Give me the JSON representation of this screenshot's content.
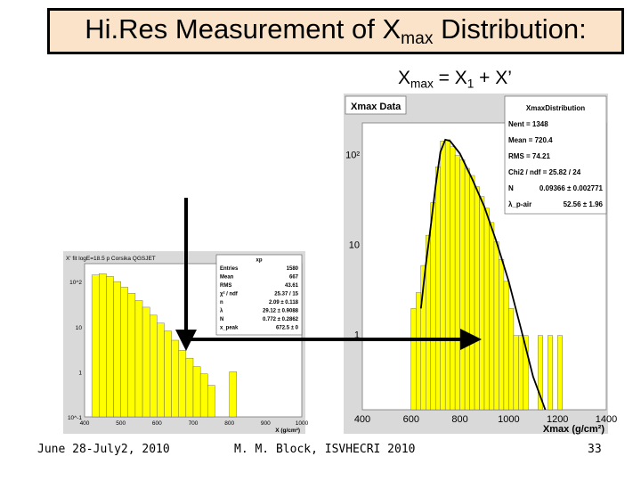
{
  "title": {
    "text_main": "Hi.Res Measurement of X",
    "text_sub": "max",
    "text_end": " Distribution:"
  },
  "equation": {
    "lhs": "X",
    "lhs_sub": "max",
    "mid": " = X",
    "mid_sub": "1",
    "rhs": " + X’"
  },
  "footer": {
    "date": "June 28-July2, 2010",
    "author": "M. M. Block, ISVHECRI 2010",
    "page": "33"
  },
  "colors": {
    "title_bg": "#fae3c8",
    "hist_fill": "#ffff00",
    "frame_bg": "#d9d9d9"
  },
  "chart_data": [
    {
      "type": "bar",
      "title": "X' fit logE=18.5 p Corsika QGSJET",
      "ylog": true,
      "xlabel": "X (g/cm²)",
      "ylabel": "",
      "x_ticks": [
        "400",
        "500",
        "600",
        "700",
        "800",
        "900",
        "1000"
      ],
      "y_ticks": [
        "10^-1",
        "1",
        "10",
        "10^2"
      ],
      "xlim": [
        400,
        1000
      ],
      "ylim": [
        0.1,
        250
      ],
      "bins": [
        {
          "x": 430,
          "y": 140
        },
        {
          "x": 450,
          "y": 150
        },
        {
          "x": 470,
          "y": 130
        },
        {
          "x": 490,
          "y": 100
        },
        {
          "x": 510,
          "y": 75
        },
        {
          "x": 530,
          "y": 55
        },
        {
          "x": 550,
          "y": 38
        },
        {
          "x": 570,
          "y": 27
        },
        {
          "x": 590,
          "y": 18
        },
        {
          "x": 610,
          "y": 12
        },
        {
          "x": 630,
          "y": 8
        },
        {
          "x": 650,
          "y": 5
        },
        {
          "x": 670,
          "y": 3
        },
        {
          "x": 690,
          "y": 2
        },
        {
          "x": 710,
          "y": 1.3
        },
        {
          "x": 730,
          "y": 0.9
        },
        {
          "x": 750,
          "y": 0.5
        },
        {
          "x": 810,
          "y": 1
        }
      ],
      "stats": {
        "header": "xp",
        "rows": [
          [
            "Entries",
            "1580"
          ],
          [
            "Mean",
            "667"
          ],
          [
            "RMS",
            "43.61"
          ],
          [
            "χ² / ndf",
            "25.37 / 15"
          ],
          [
            "n",
            "2.09 ± 0.118"
          ],
          [
            "λ",
            "29.12 ± 0.9088"
          ],
          [
            "N",
            "0.772 ± 0.2862"
          ],
          [
            "x_peak",
            "672.5 ± 0"
          ]
        ]
      }
    },
    {
      "type": "bar",
      "title": "Xmax Data",
      "ylog": true,
      "xlabel": "Xmax (g/cm²)",
      "ylabel": "",
      "x_ticks": [
        "400",
        "600",
        "800",
        "1000",
        "1200",
        "1400"
      ],
      "y_ticks": [
        "1",
        "10",
        "10²"
      ],
      "xlim": [
        400,
        1400
      ],
      "ylim": [
        0.15,
        230
      ],
      "bins": [
        {
          "x": 610,
          "y": 2
        },
        {
          "x": 630,
          "y": 3
        },
        {
          "x": 650,
          "y": 6
        },
        {
          "x": 670,
          "y": 13
        },
        {
          "x": 690,
          "y": 30
        },
        {
          "x": 710,
          "y": 75
        },
        {
          "x": 730,
          "y": 145
        },
        {
          "x": 750,
          "y": 150
        },
        {
          "x": 770,
          "y": 125
        },
        {
          "x": 790,
          "y": 100
        },
        {
          "x": 810,
          "y": 90
        },
        {
          "x": 830,
          "y": 72
        },
        {
          "x": 850,
          "y": 60
        },
        {
          "x": 870,
          "y": 45
        },
        {
          "x": 890,
          "y": 35
        },
        {
          "x": 910,
          "y": 26
        },
        {
          "x": 930,
          "y": 18
        },
        {
          "x": 950,
          "y": 11
        },
        {
          "x": 970,
          "y": 7
        },
        {
          "x": 990,
          "y": 4
        },
        {
          "x": 1010,
          "y": 2
        },
        {
          "x": 1030,
          "y": 1
        },
        {
          "x": 1050,
          "y": 1
        },
        {
          "x": 1070,
          "y": 1
        },
        {
          "x": 1130,
          "y": 1
        },
        {
          "x": 1170,
          "y": 1
        },
        {
          "x": 1210,
          "y": 1
        }
      ],
      "fit_curve": [
        [
          640,
          2
        ],
        [
          660,
          6
        ],
        [
          680,
          16
        ],
        [
          700,
          45
        ],
        [
          720,
          110
        ],
        [
          740,
          150
        ],
        [
          760,
          145
        ],
        [
          800,
          105
        ],
        [
          850,
          55
        ],
        [
          900,
          27
        ],
        [
          950,
          11
        ],
        [
          1000,
          4
        ],
        [
          1050,
          1.2
        ],
        [
          1100,
          0.35
        ],
        [
          1150,
          0.15
        ]
      ],
      "stats": {
        "header": "XmaxDistribution",
        "rows": [
          [
            "Nent = 1348",
            ""
          ],
          [
            "Mean  = 720.4",
            ""
          ],
          [
            "RMS   = 74.21",
            ""
          ],
          [
            "Chi2 / ndf = 25.82 / 24",
            ""
          ],
          [
            "N",
            "0.09366 ± 0.002771"
          ],
          [
            "λ_p-air",
            "52.56 ± 1.96"
          ]
        ]
      }
    }
  ]
}
